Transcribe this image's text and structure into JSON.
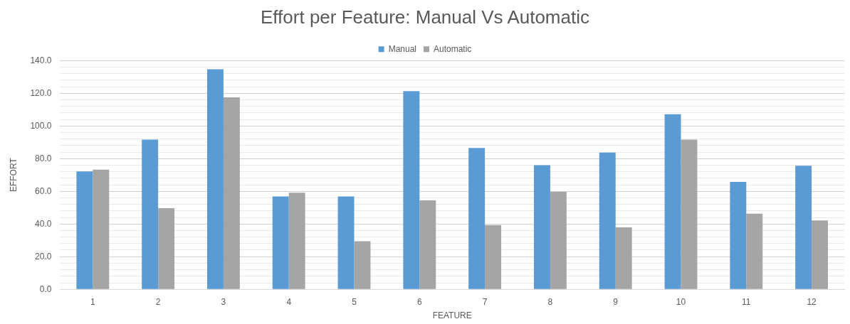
{
  "chart_data": {
    "type": "bar",
    "title": "Effort per Feature: Manual Vs Automatic",
    "xlabel": "FEATURE",
    "ylabel": "EFFORT",
    "categories": [
      "1",
      "2",
      "3",
      "4",
      "5",
      "6",
      "7",
      "8",
      "9",
      "10",
      "11",
      "12"
    ],
    "series": [
      {
        "name": "Manual",
        "color": "#5b9bd5",
        "values": [
          72.2,
          91.6,
          134.6,
          56.8,
          56.8,
          121.3,
          86.5,
          76.0,
          83.7,
          107.2,
          65.7,
          75.6
        ]
      },
      {
        "name": "Automatic",
        "color": "#a5a5a5",
        "values": [
          73.2,
          49.6,
          117.5,
          59.1,
          29.4,
          54.4,
          39.3,
          59.6,
          37.9,
          91.6,
          46.3,
          42.2
        ]
      }
    ],
    "ylim": [
      0,
      140
    ],
    "yticks": [
      {
        "value": 0,
        "label": "0.0"
      },
      {
        "value": 4,
        "label": null
      },
      {
        "value": 8,
        "label": null
      },
      {
        "value": 12,
        "label": null
      },
      {
        "value": 16,
        "label": null
      },
      {
        "value": 20,
        "label": "20.0"
      },
      {
        "value": 24,
        "label": null
      },
      {
        "value": 28,
        "label": null
      },
      {
        "value": 32,
        "label": null
      },
      {
        "value": 36,
        "label": null
      },
      {
        "value": 40,
        "label": "40.0"
      },
      {
        "value": 44,
        "label": null
      },
      {
        "value": 48,
        "label": null
      },
      {
        "value": 52,
        "label": null
      },
      {
        "value": 56,
        "label": null
      },
      {
        "value": 60,
        "label": "60.0"
      },
      {
        "value": 64,
        "label": null
      },
      {
        "value": 68,
        "label": null
      },
      {
        "value": 72,
        "label": null
      },
      {
        "value": 76,
        "label": null
      },
      {
        "value": 80,
        "label": "80.0"
      },
      {
        "value": 84,
        "label": null
      },
      {
        "value": 88,
        "label": null
      },
      {
        "value": 92,
        "label": null
      },
      {
        "value": 96,
        "label": null
      },
      {
        "value": 100,
        "label": "100.0"
      },
      {
        "value": 104,
        "label": null
      },
      {
        "value": 108,
        "label": null
      },
      {
        "value": 112,
        "label": null
      },
      {
        "value": 116,
        "label": null
      },
      {
        "value": 120,
        "label": "120.0"
      },
      {
        "value": 124,
        "label": null
      },
      {
        "value": 128,
        "label": null
      },
      {
        "value": 132,
        "label": null
      },
      {
        "value": 136,
        "label": null
      },
      {
        "value": 140,
        "label": "140.0"
      }
    ],
    "grid": "y",
    "legend": "top"
  }
}
